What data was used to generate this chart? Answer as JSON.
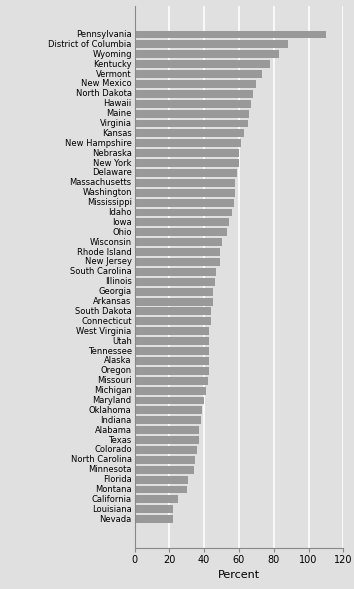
{
  "states": [
    "Pennsylvania",
    "District of Columbia",
    "Wyoming",
    "Kentucky",
    "Vermont",
    "New Mexico",
    "North Dakota",
    "Hawaii",
    "Maine",
    "Virginia",
    "Kansas",
    "New Hampshire",
    "Nebraska",
    "New York",
    "Delaware",
    "Massachusetts",
    "Washington",
    "Mississippi",
    "Idaho",
    "Iowa",
    "Ohio",
    "Wisconsin",
    "Rhode Island",
    "New Jersey",
    "South Carolina",
    "Illinois",
    "Georgia",
    "Arkansas",
    "South Dakota",
    "Connecticut",
    "West Virginia",
    "Utah",
    "Tennessee",
    "Alaska",
    "Oregon",
    "Missouri",
    "Michigan",
    "Maryland",
    "Oklahoma",
    "Indiana",
    "Alabama",
    "Texas",
    "Colorado",
    "North Carolina",
    "Minnesota",
    "Florida",
    "Montana",
    "California",
    "Louisiana",
    "Nevada"
  ],
  "values": [
    110,
    88,
    83,
    78,
    73,
    70,
    68,
    67,
    66,
    65,
    63,
    61,
    60,
    60,
    59,
    58,
    58,
    57,
    56,
    54,
    53,
    50,
    49,
    49,
    47,
    46,
    45,
    45,
    44,
    44,
    43,
    43,
    43,
    43,
    43,
    42,
    41,
    40,
    39,
    38,
    37,
    37,
    36,
    35,
    34,
    31,
    30,
    25,
    22,
    22
  ],
  "bar_color": "#999999",
  "background_color": "#e0e0e0",
  "plot_bg_color": "#e0e0e0",
  "xlabel": "Percent",
  "xlim": [
    0,
    120
  ],
  "xticks": [
    0,
    20,
    40,
    60,
    80,
    100,
    120
  ],
  "grid_color": "#ffffff",
  "label_fontsize": 6.0,
  "tick_fontsize": 7.0,
  "xlabel_fontsize": 8.0
}
